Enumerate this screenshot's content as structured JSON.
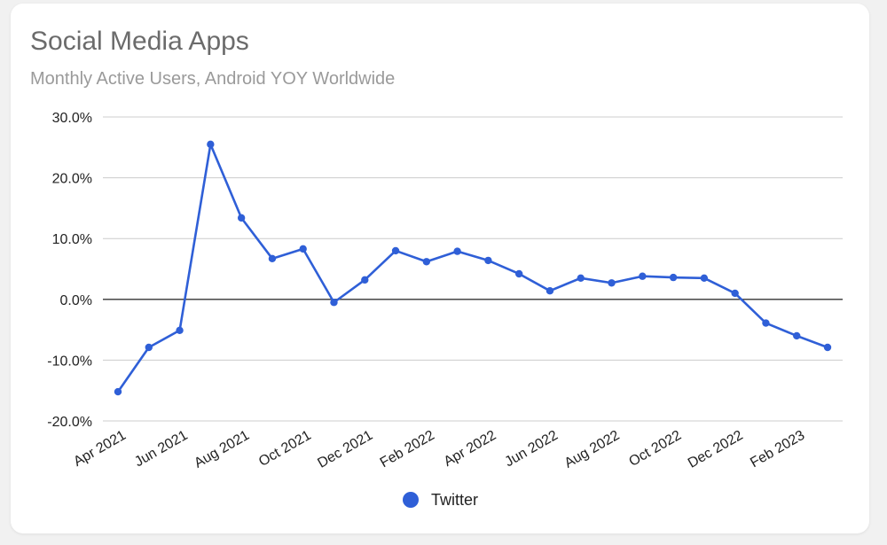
{
  "chart_data": {
    "type": "line",
    "title": "Social Media Apps",
    "subtitle": "Monthly Active Users, Android YOY Worldwide",
    "xlabel": "",
    "ylabel": "",
    "ylim": [
      -20,
      30
    ],
    "y_ticks": [
      30,
      20,
      10,
      0,
      -10,
      -20
    ],
    "y_tick_labels": [
      "30.0%",
      "20.0%",
      "10.0%",
      "0.0%",
      "-10.0%",
      "-20.0%"
    ],
    "x": [
      "Apr 2021",
      "May 2021",
      "Jun 2021",
      "Jul 2021",
      "Aug 2021",
      "Sep 2021",
      "Oct 2021",
      "Nov 2021",
      "Dec 2021",
      "Jan 2022",
      "Feb 2022",
      "Mar 2022",
      "Apr 2022",
      "May 2022",
      "Jun 2022",
      "Jul 2022",
      "Aug 2022",
      "Sep 2022",
      "Oct 2022",
      "Nov 2022",
      "Dec 2022",
      "Jan 2023",
      "Feb 2023",
      "Mar 2023"
    ],
    "x_tick_labels": [
      "Apr 2021",
      "Jun 2021",
      "Aug 2021",
      "Oct 2021",
      "Dec 2021",
      "Feb 2022",
      "Apr 2022",
      "Jun 2022",
      "Aug 2022",
      "Oct 2022",
      "Dec 2022",
      "Feb 2023"
    ],
    "series": [
      {
        "name": "Twitter",
        "color": "#2f5fd7",
        "values": [
          -15.2,
          -7.9,
          -5.1,
          25.5,
          13.4,
          6.7,
          8.3,
          -0.5,
          3.2,
          8.0,
          6.2,
          7.9,
          6.4,
          4.2,
          1.4,
          3.5,
          2.7,
          3.8,
          3.6,
          3.5,
          1.0,
          -3.9,
          -6.0,
          -7.9
        ]
      }
    ],
    "legend": [
      "Twitter"
    ],
    "legend_position": "bottom",
    "grid": true
  }
}
